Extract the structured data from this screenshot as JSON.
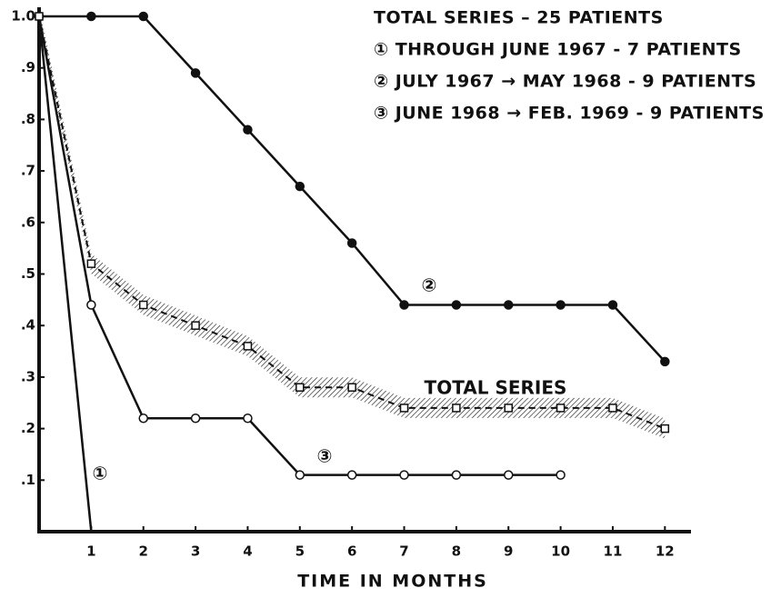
{
  "chart_data": {
    "type": "line",
    "x_label": "TIME IN MONTHS",
    "legend_text": [
      "TOTAL SERIES – 25 PATIENTS",
      "① THROUGH JUNE 1967 - 7 PATIENTS",
      "② JULY 1967 → MAY 1968 - 9 PATIENTS",
      "③ JUNE 1968 → FEB. 1969 - 9 PATIENTS"
    ],
    "x": [
      0,
      1,
      2,
      3,
      4,
      5,
      6,
      7,
      8,
      9,
      10,
      11,
      12
    ],
    "xlim": [
      0,
      12.5
    ],
    "xticks": [
      1,
      2,
      3,
      4,
      5,
      6,
      7,
      8,
      9,
      10,
      11,
      12
    ],
    "ylim": [
      0,
      1.0
    ],
    "yticks": [
      {
        "value": 0.1,
        "label": ".1"
      },
      {
        "value": 0.2,
        "label": ".2"
      },
      {
        "value": 0.3,
        "label": ".3"
      },
      {
        "value": 0.4,
        "label": ".4"
      },
      {
        "value": 0.5,
        "label": ".5"
      },
      {
        "value": 0.6,
        "label": ".6"
      },
      {
        "value": 0.7,
        "label": ".7"
      },
      {
        "value": 0.8,
        "label": ".8"
      },
      {
        "value": 0.9,
        "label": ".9"
      },
      {
        "value": 1,
        "label": "1.0"
      }
    ],
    "series": [
      {
        "name": "①",
        "color": "#111111",
        "marker": "none",
        "dashed": false,
        "band": false,
        "values": [
          1.0,
          0,
          null,
          null,
          null,
          null,
          null,
          null,
          null,
          null,
          null,
          null,
          null
        ]
      },
      {
        "name": "②",
        "color": "#111111",
        "marker": "filled-circle",
        "dashed": false,
        "band": false,
        "values": [
          1.0,
          1.0,
          1.0,
          0.89,
          0.78,
          0.67,
          0.56,
          0.44,
          0.44,
          0.44,
          0.44,
          0.44,
          0.33
        ]
      },
      {
        "name": "③",
        "color": "#111111",
        "marker": "open-circle",
        "dashed": false,
        "band": false,
        "values": [
          1.0,
          0.44,
          0.22,
          0.22,
          0.22,
          0.11,
          0.11,
          0.11,
          0.11,
          0.11,
          0.11,
          null,
          null
        ]
      },
      {
        "name": "TOTAL SERIES",
        "color": "#111111",
        "marker": "open-square",
        "dashed": true,
        "band": true,
        "values": [
          1.0,
          0.52,
          0.44,
          0.4,
          0.36,
          0.28,
          0.28,
          0.24,
          0.24,
          0.24,
          0.24,
          0.24,
          0.2
        ]
      }
    ]
  }
}
